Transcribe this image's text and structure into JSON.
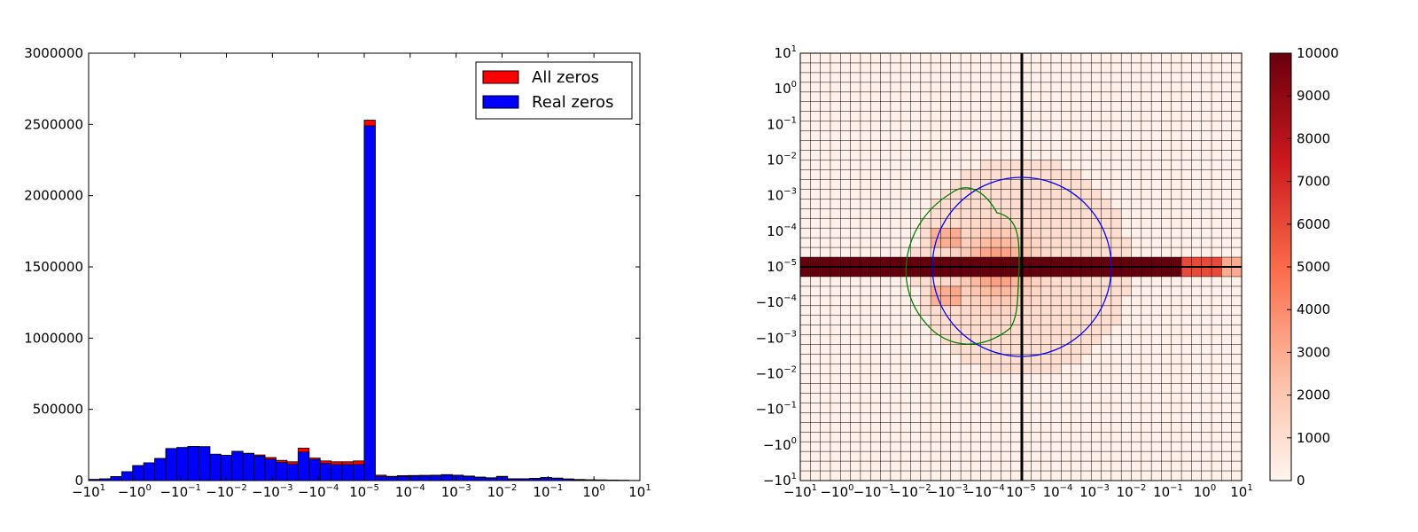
{
  "chart_data": [
    {
      "type": "bar",
      "x_tick_labels": [
        {
          "base": "−10",
          "exp": "1"
        },
        {
          "base": "−10",
          "exp": "0"
        },
        {
          "base": "−10",
          "exp": "−1"
        },
        {
          "base": "−10",
          "exp": "−2"
        },
        {
          "base": "−10",
          "exp": "−3"
        },
        {
          "base": "−10",
          "exp": "−4"
        },
        {
          "base": "10",
          "exp": "−5"
        },
        {
          "base": "10",
          "exp": "−4"
        },
        {
          "base": "10",
          "exp": "−3"
        },
        {
          "base": "10",
          "exp": "−2"
        },
        {
          "base": "10",
          "exp": "−1"
        },
        {
          "base": "10",
          "exp": "0"
        },
        {
          "base": "10",
          "exp": "1"
        }
      ],
      "y_ticks": [
        "0",
        "500000",
        "1000000",
        "1500000",
        "2000000",
        "2500000",
        "3000000"
      ],
      "ylim": [
        0,
        3000000
      ],
      "legend_position": "top-right",
      "series": [
        {
          "name": "All zeros",
          "color": "#ff0000",
          "values": [
            8000,
            12000,
            28000,
            62000,
            105000,
            125000,
            155000,
            225000,
            232000,
            240000,
            238000,
            185000,
            178000,
            205000,
            192000,
            180000,
            162000,
            142000,
            132000,
            228000,
            158000,
            138000,
            132000,
            132000,
            138000,
            2530000,
            38000,
            30000,
            35000,
            36000,
            37000,
            38000,
            42000,
            38000,
            32000,
            25000,
            20000,
            30000,
            13000,
            13000,
            16000,
            22000,
            18000,
            12000,
            8000,
            6000,
            5000,
            4000,
            2000,
            1000
          ]
        },
        {
          "name": "Real zeros",
          "color": "#0000ff",
          "values": [
            8000,
            12000,
            28000,
            62000,
            105000,
            125000,
            155000,
            225000,
            232000,
            240000,
            238000,
            185000,
            178000,
            205000,
            190000,
            172000,
            150000,
            128000,
            115000,
            200000,
            148000,
            120000,
            112000,
            112000,
            113000,
            2490000,
            30000,
            25000,
            30000,
            32000,
            33000,
            34000,
            38000,
            35000,
            29000,
            22000,
            18000,
            27000,
            11000,
            11000,
            14000,
            20000,
            16000,
            10000,
            6000,
            5000,
            4000,
            3000,
            2000,
            1000
          ]
        }
      ]
    },
    {
      "type": "heatmap",
      "x_tick_labels": [
        {
          "base": "−10",
          "exp": "1"
        },
        {
          "base": "−10",
          "exp": "0"
        },
        {
          "base": "−10",
          "exp": "−1"
        },
        {
          "base": "−10",
          "exp": "−2"
        },
        {
          "base": "−10",
          "exp": "−3"
        },
        {
          "base": "−10",
          "exp": "−4"
        },
        {
          "base": "10",
          "exp": "−5"
        },
        {
          "base": "10",
          "exp": "−4"
        },
        {
          "base": "10",
          "exp": "−3"
        },
        {
          "base": "10",
          "exp": "−2"
        },
        {
          "base": "10",
          "exp": "−1"
        },
        {
          "base": "10",
          "exp": "0"
        },
        {
          "base": "10",
          "exp": "1"
        }
      ],
      "y_tick_labels": [
        {
          "base": "10",
          "exp": "1"
        },
        {
          "base": "10",
          "exp": "0"
        },
        {
          "base": "10",
          "exp": "−1"
        },
        {
          "base": "10",
          "exp": "−2"
        },
        {
          "base": "10",
          "exp": "−3"
        },
        {
          "base": "10",
          "exp": "−4"
        },
        {
          "base": "10",
          "exp": "−5"
        },
        {
          "base": "−10",
          "exp": "−4"
        },
        {
          "base": "−10",
          "exp": "−3"
        },
        {
          "base": "−10",
          "exp": "−2"
        },
        {
          "base": "−10",
          "exp": "−1"
        },
        {
          "base": "−10",
          "exp": "0"
        },
        {
          "base": "−10",
          "exp": "1"
        }
      ],
      "colorbar_ticks": [
        "0",
        "1000",
        "2000",
        "3000",
        "4000",
        "5000",
        "6000",
        "7000",
        "8000",
        "9000",
        "10000"
      ],
      "colorbar_range": [
        0,
        10000
      ],
      "colormap": "Reds",
      "grid": true,
      "overlays": [
        {
          "shape": "circle",
          "color": "#0000ff"
        },
        {
          "shape": "closed curve",
          "color": "#008000"
        }
      ]
    }
  ]
}
